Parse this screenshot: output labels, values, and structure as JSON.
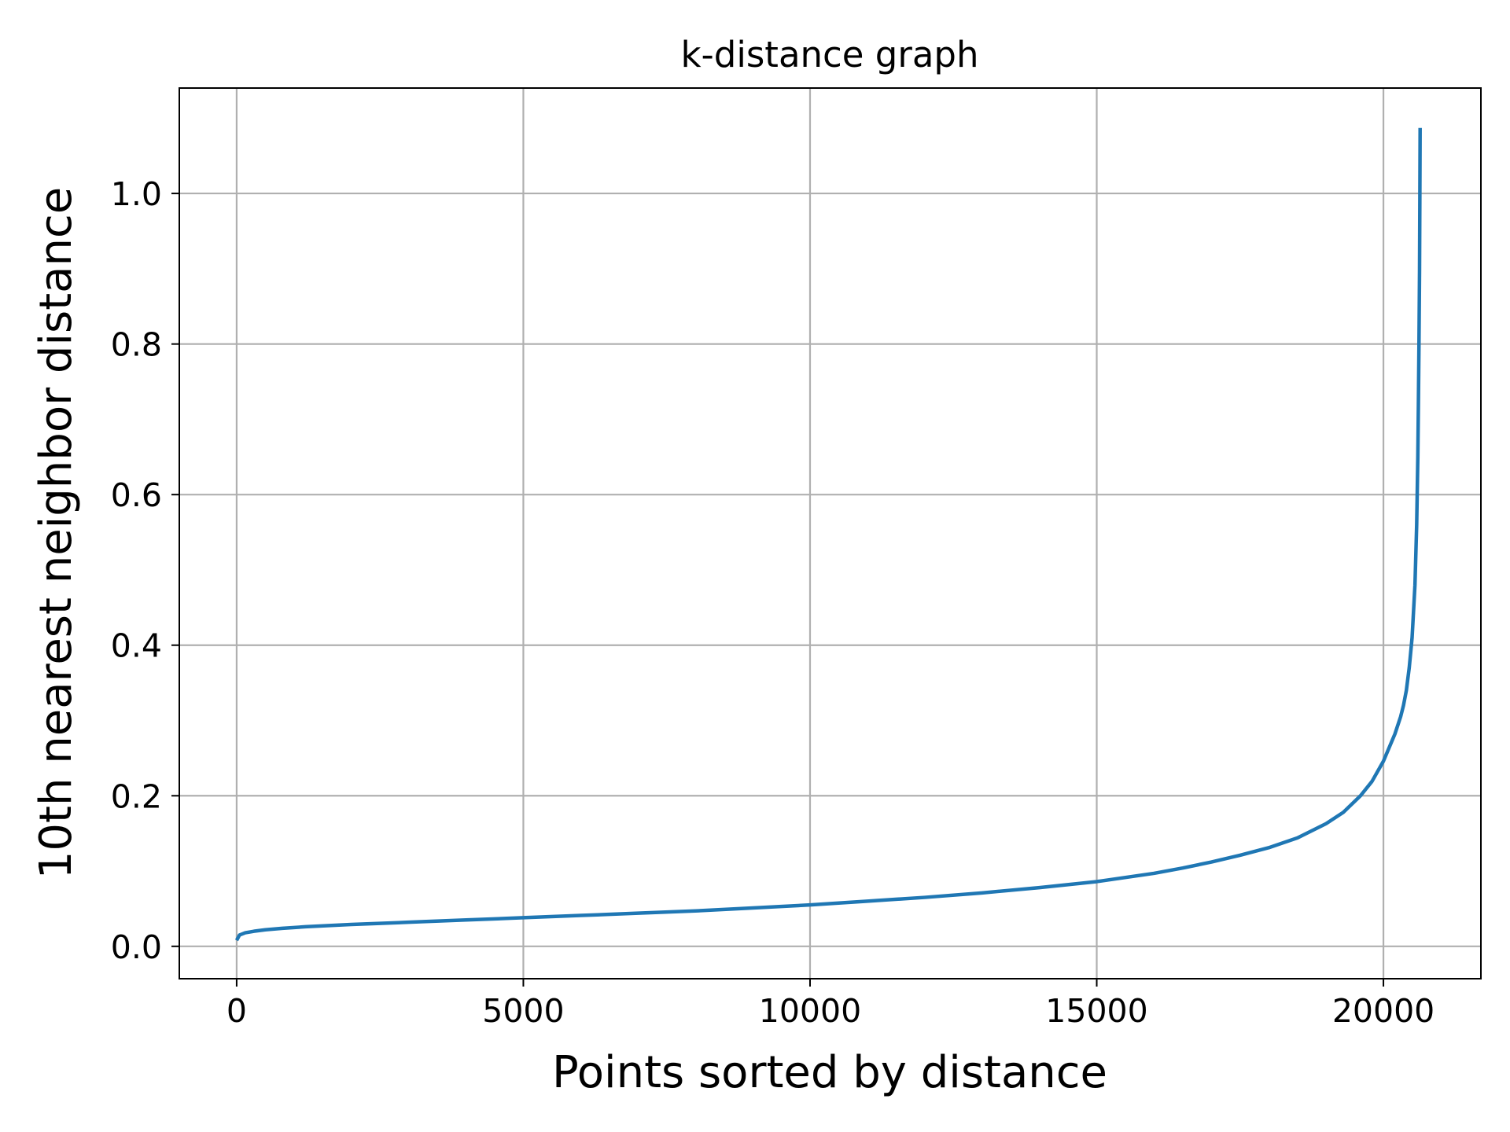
{
  "chart_data": {
    "type": "line",
    "title": "k-distance graph",
    "xlabel": "Points sorted by distance",
    "ylabel": "10th nearest neighbor distance",
    "xlim": [
      -1000,
      21700
    ],
    "ylim": [
      -0.043,
      1.14
    ],
    "xticks": [
      0,
      5000,
      10000,
      15000,
      20000
    ],
    "xtick_labels": [
      "0",
      "5000",
      "10000",
      "15000",
      "20000"
    ],
    "yticks": [
      0.0,
      0.2,
      0.4,
      0.6,
      0.8,
      1.0
    ],
    "ytick_labels": [
      "0.0",
      "0.2",
      "0.4",
      "0.6",
      "0.8",
      "1.0"
    ],
    "grid": true,
    "series": [
      {
        "color": "#1f77b4",
        "x": [
          0,
          50,
          150,
          300,
          500,
          800,
          1200,
          2000,
          3000,
          4000,
          5000,
          6000,
          7000,
          8000,
          9000,
          10000,
          11000,
          12000,
          13000,
          14000,
          15000,
          16000,
          16500,
          17000,
          17500,
          18000,
          18500,
          19000,
          19300,
          19600,
          19800,
          20000,
          20100,
          20200,
          20300,
          20350,
          20400,
          20450,
          20500,
          20550,
          20580,
          20600,
          20610,
          20620,
          20630,
          20635,
          20640
        ],
        "y": [
          0.008,
          0.015,
          0.018,
          0.02,
          0.022,
          0.024,
          0.026,
          0.029,
          0.032,
          0.035,
          0.038,
          0.041,
          0.044,
          0.047,
          0.051,
          0.055,
          0.06,
          0.065,
          0.071,
          0.078,
          0.086,
          0.097,
          0.104,
          0.112,
          0.121,
          0.131,
          0.144,
          0.163,
          0.178,
          0.2,
          0.219,
          0.246,
          0.264,
          0.282,
          0.305,
          0.32,
          0.34,
          0.37,
          0.41,
          0.48,
          0.56,
          0.65,
          0.72,
          0.8,
          0.9,
          0.99,
          1.087
        ]
      }
    ]
  }
}
